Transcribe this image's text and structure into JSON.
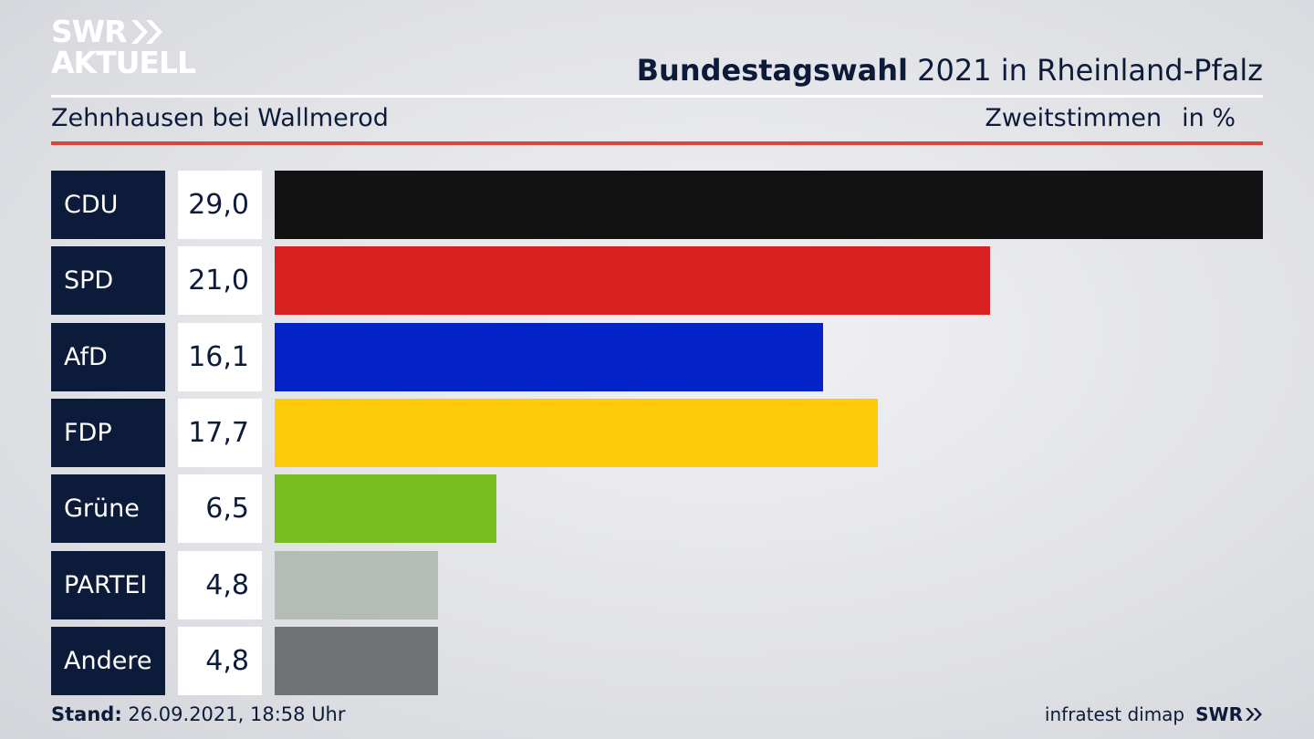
{
  "brand": {
    "line1": "SWR",
    "line2": "AKTUELL"
  },
  "header": {
    "title_bold": "Bundestagswahl",
    "title_rest": "2021 in Rheinland-Pfalz",
    "subtitle": "Zehnhausen bei Wallmerod",
    "measure": "Zweitstimmen",
    "unit": "in %"
  },
  "chart_data": {
    "type": "bar",
    "orientation": "horizontal",
    "categories": [
      "CDU",
      "SPD",
      "AfD",
      "FDP",
      "Grüne",
      "PARTEI",
      "Andere"
    ],
    "values": [
      29.0,
      21.0,
      16.1,
      17.7,
      6.5,
      4.8,
      4.8
    ],
    "value_labels": [
      "29,0",
      "21,0",
      "16,1",
      "17,7",
      "6,5",
      "4,8",
      "4,8"
    ],
    "colors": [
      "#121212",
      "#d92020",
      "#0322c8",
      "#fecb0a",
      "#77bd1f",
      "#b4bcb5",
      "#717274"
    ],
    "xlim": [
      0,
      29.0
    ],
    "grid": false,
    "legend": "none"
  },
  "footer": {
    "stand_label": "Stand:",
    "stand_value": "26.09.2021, 18:58 Uhr",
    "source": "infratest dimap",
    "brand": "SWR"
  }
}
